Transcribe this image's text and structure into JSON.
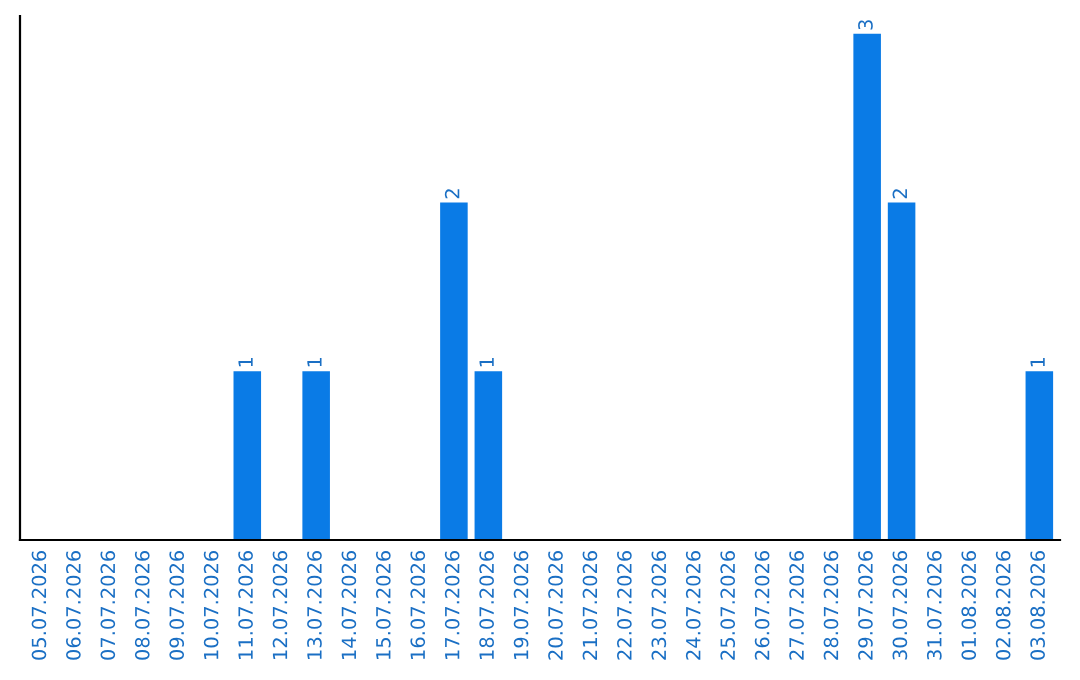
{
  "chart_data": {
    "type": "bar",
    "categories": [
      "05.07.2026",
      "06.07.2026",
      "07.07.2026",
      "08.07.2026",
      "09.07.2026",
      "10.07.2026",
      "11.07.2026",
      "12.07.2026",
      "13.07.2026",
      "14.07.2026",
      "15.07.2026",
      "16.07.2026",
      "17.07.2026",
      "18.07.2026",
      "19.07.2026",
      "20.07.2026",
      "21.07.2026",
      "22.07.2026",
      "23.07.2026",
      "24.07.2026",
      "25.07.2026",
      "26.07.2026",
      "27.07.2026",
      "28.07.2026",
      "29.07.2026",
      "30.07.2026",
      "31.07.2026",
      "01.08.2026",
      "02.08.2026",
      "03.08.2026"
    ],
    "values": [
      0,
      0,
      0,
      0,
      0,
      0,
      1,
      0,
      1,
      0,
      0,
      0,
      2,
      1,
      0,
      0,
      0,
      0,
      0,
      0,
      0,
      0,
      0,
      0,
      3,
      2,
      0,
      0,
      0,
      1
    ],
    "value_labels": [
      null,
      null,
      null,
      null,
      null,
      null,
      "1",
      null,
      "1",
      null,
      null,
      null,
      "2",
      "1",
      null,
      null,
      null,
      null,
      null,
      null,
      null,
      null,
      null,
      null,
      "3",
      "2",
      null,
      null,
      null,
      "1"
    ],
    "color": "#0a7be6",
    "tick_labels": "x",
    "grid": false,
    "legend": false
  }
}
